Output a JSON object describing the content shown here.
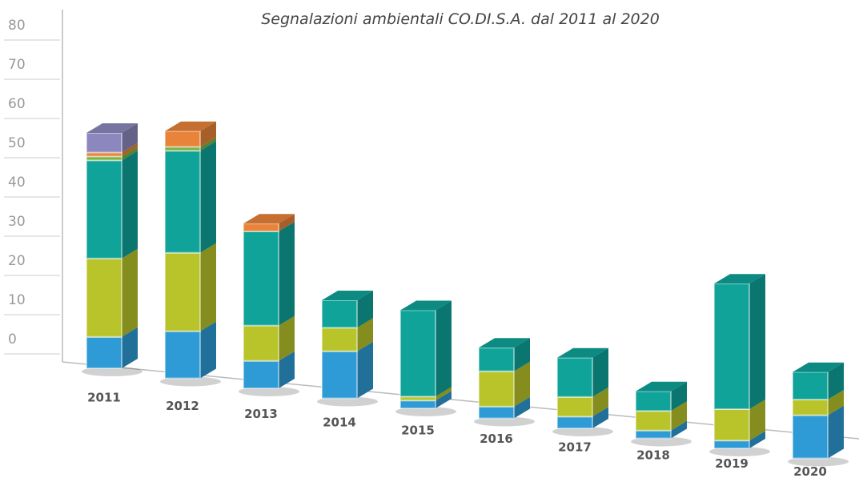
{
  "chart_data": {
    "type": "bar",
    "stacked": true,
    "title": "Segnalazioni ambientali  CO.DI.S.A. dal 2011 al 2020",
    "categories": [
      "2011",
      "2012",
      "2013",
      "2014",
      "2015",
      "2016",
      "2017",
      "2018",
      "2019",
      "2020"
    ],
    "series": [
      {
        "color": "#2e9bd6",
        "values": [
          8,
          12,
          7,
          12,
          2,
          3,
          3,
          2,
          2,
          11
        ]
      },
      {
        "color": "#b8c42a",
        "values": [
          20,
          20,
          9,
          6,
          1,
          9,
          5,
          5,
          8,
          4
        ]
      },
      {
        "color": "#0fa39a",
        "values": [
          25,
          26,
          24,
          7,
          22,
          6,
          10,
          5,
          32,
          7
        ]
      },
      {
        "color": "#7cb342",
        "values": [
          1,
          1,
          0,
          0,
          0,
          0,
          0,
          0,
          0,
          0
        ]
      },
      {
        "color": "#e8843a",
        "values": [
          1,
          4,
          2,
          0,
          0,
          0,
          0,
          0,
          0,
          0
        ]
      },
      {
        "color": "#8c88bd",
        "values": [
          5,
          0,
          0,
          0,
          0,
          0,
          0,
          0,
          0,
          0
        ]
      }
    ],
    "ylim": [
      0,
      80
    ],
    "yticks": [
      0,
      10,
      20,
      30,
      40,
      50,
      60,
      70,
      80
    ]
  }
}
